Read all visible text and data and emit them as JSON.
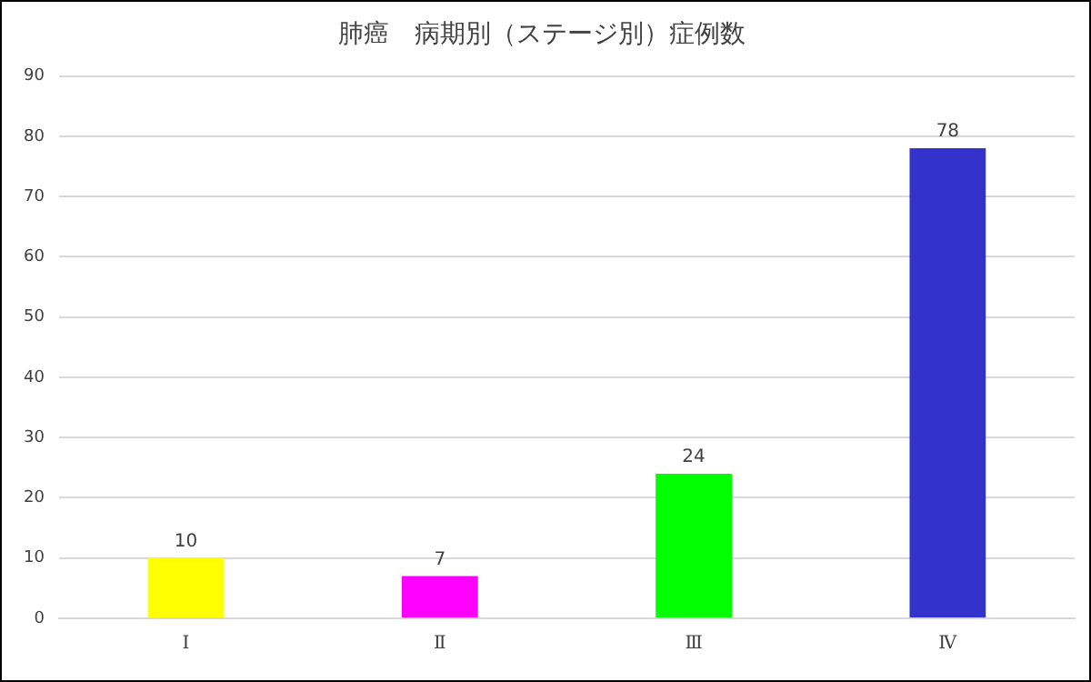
{
  "chart_data": {
    "type": "bar",
    "title": "肺癌　病期別（ステージ別）症例数",
    "categories": [
      "Ⅰ",
      "Ⅱ",
      "Ⅲ",
      "Ⅳ"
    ],
    "values": [
      10,
      7,
      24,
      78
    ],
    "colors": [
      "#ffff00",
      "#ff00ff",
      "#00ff00",
      "#3333cc"
    ],
    "ylim": [
      0,
      90
    ],
    "yticks": [
      0,
      10,
      20,
      30,
      40,
      50,
      60,
      70,
      80,
      90
    ],
    "grid": "y",
    "legend": false,
    "data_labels": true
  }
}
